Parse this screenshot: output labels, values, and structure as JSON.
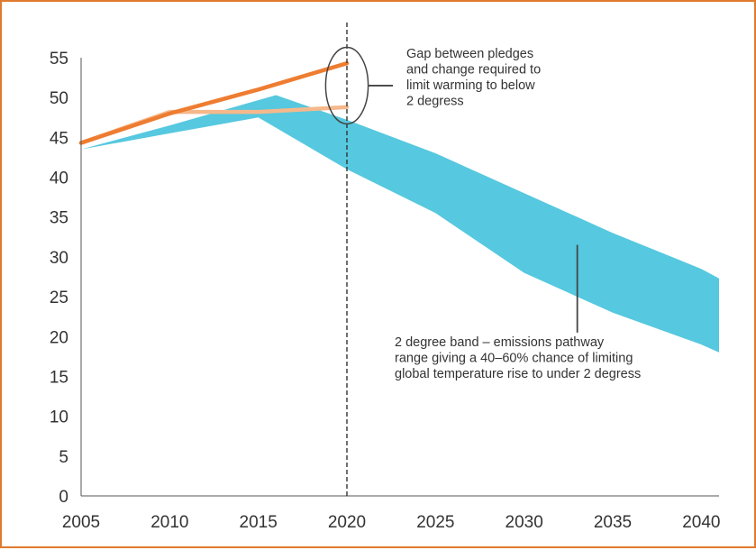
{
  "chart_data": {
    "type": "area",
    "title": "",
    "xlabel": "",
    "ylabel": "",
    "xlim": [
      2005,
      2041
    ],
    "ylim": [
      0,
      55
    ],
    "x_ticks": [
      "2005",
      "2010",
      "2015",
      "2020",
      "2025",
      "2030",
      "2035",
      "2040"
    ],
    "y_ticks": [
      "0",
      "5",
      "10",
      "15",
      "20",
      "25",
      "30",
      "35",
      "40",
      "45",
      "50",
      "55"
    ],
    "grid": false,
    "legend": "none",
    "band": {
      "color": "#56c8df",
      "upper": [
        {
          "x": 2005,
          "y": 43.5
        },
        {
          "x": 2010,
          "y": 46.5
        },
        {
          "x": 2016,
          "y": 50.3
        },
        {
          "x": 2020,
          "y": 47.2
        },
        {
          "x": 2025,
          "y": 43.0
        },
        {
          "x": 2030,
          "y": 38.0
        },
        {
          "x": 2035,
          "y": 33.0
        },
        {
          "x": 2040,
          "y": 28.5
        },
        {
          "x": 2041,
          "y": 27.3
        }
      ],
      "lower": [
        {
          "x": 2005,
          "y": 43.5
        },
        {
          "x": 2010,
          "y": 45.5
        },
        {
          "x": 2015,
          "y": 47.5
        },
        {
          "x": 2020,
          "y": 41.0
        },
        {
          "x": 2025,
          "y": 35.5
        },
        {
          "x": 2030,
          "y": 28.0
        },
        {
          "x": 2035,
          "y": 23.0
        },
        {
          "x": 2040,
          "y": 19.0
        },
        {
          "x": 2041,
          "y": 18.0
        }
      ]
    },
    "series": [
      {
        "color": "#ee7d31",
        "points": [
          {
            "x": 2005,
            "y": 44.3
          },
          {
            "x": 2010,
            "y": 48.0
          },
          {
            "x": 2015,
            "y": 51.0
          },
          {
            "x": 2020,
            "y": 54.3
          }
        ]
      },
      {
        "color": "#f5b88b",
        "points": [
          {
            "x": 2005,
            "y": 44.3
          },
          {
            "x": 2010,
            "y": 48.2
          },
          {
            "x": 2015,
            "y": 48.2
          },
          {
            "x": 2020,
            "y": 48.8
          }
        ]
      }
    ],
    "reference_line": {
      "x": 2020,
      "style": "dashed",
      "color": "#333333"
    },
    "annotations": [
      {
        "id": "gap",
        "lines": [
          "Gap between pledges",
          "and change required to",
          "limit warming to below",
          "2 degress"
        ],
        "ellipse_center": {
          "x": 2020,
          "y": 51.5
        },
        "ellipse_radius_data": {
          "x": 1.2,
          "y": 4.8
        },
        "pointer_to_y": 51.5
      },
      {
        "id": "band",
        "lines": [
          "2 degree band – emissions pathway",
          "range giving a 40–60% chance of limiting",
          "global temperature rise to under 2 degress"
        ],
        "pointer_x": 2033,
        "pointer_from_y": 31.5,
        "pointer_to_y": 20.5
      }
    ]
  }
}
